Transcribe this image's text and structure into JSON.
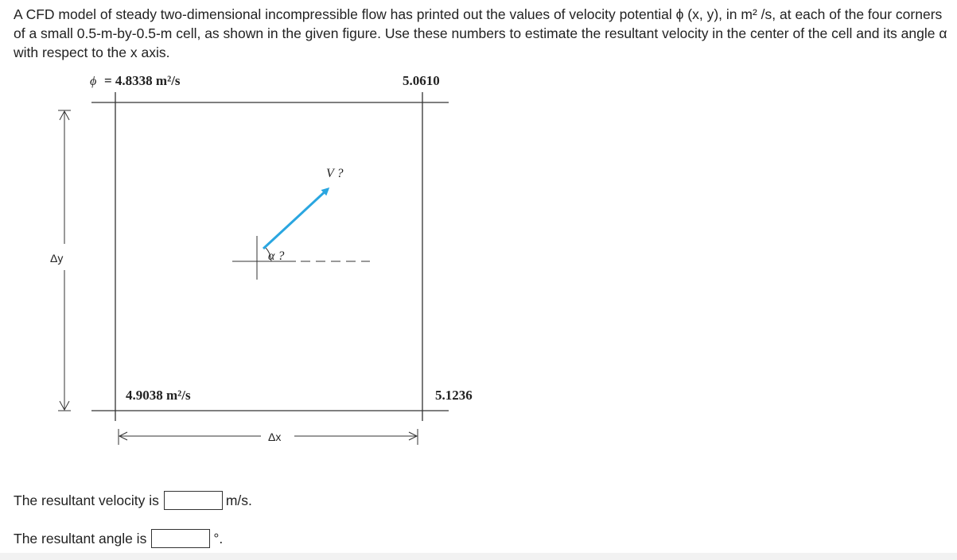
{
  "question": {
    "text": "A CFD model of steady two-dimensional incompressible flow has printed out the values of velocity potential ϕ (x, y), in m² /s, at each of the four corners of a small 0.5-m-by-0.5-m cell, as shown in the given figure. Use these numbers to estimate the resultant velocity in the center of the cell and its angle α with respect to the x axis."
  },
  "figure": {
    "phi_top_left_symbol": "ϕ",
    "phi_top_left": "= 4.8338 m²/s",
    "phi_top_right": "5.0610",
    "phi_bottom_left": "4.9038 m²/s",
    "phi_bottom_right": "5.1236",
    "velocity_label": "V ?",
    "angle_label": "α ?",
    "dy_label": "Δy",
    "dx_label": "Δx",
    "arrow_color": "#2aa6e0"
  },
  "answers": {
    "velocity_label": "The resultant velocity is",
    "velocity_unit": "m/s.",
    "angle_label": "The resultant angle is",
    "angle_unit": "°."
  }
}
